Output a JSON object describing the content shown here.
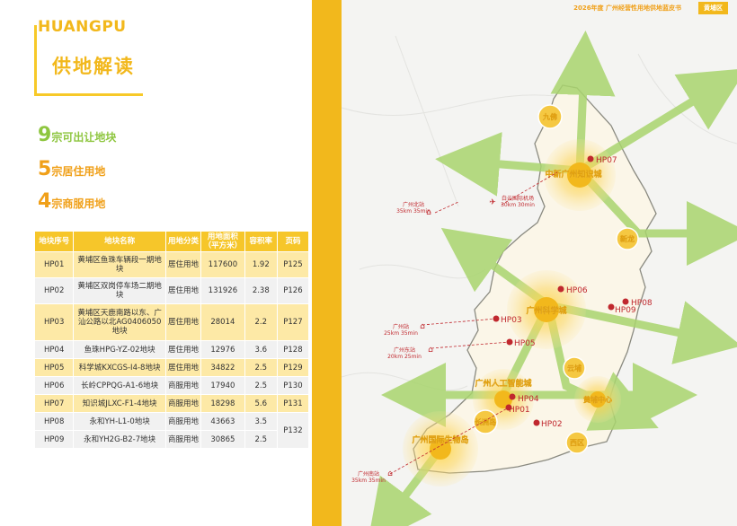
{
  "header": {
    "doc_title": "2026年度 广州经营性用地供地蓝皮书",
    "district_tag": "黄埔区"
  },
  "brand": {
    "district_en": "HUANGPU",
    "section_title": "供地解读"
  },
  "stats": [
    {
      "num": "9",
      "text": "宗可出让地块"
    },
    {
      "num": "5",
      "text": "宗居住用地"
    },
    {
      "num": "4",
      "text": "宗商服用地"
    }
  ],
  "table": {
    "headers": [
      "地块序号",
      "地块名称",
      "用地分类",
      "用地面积（平方米）",
      "容积率",
      "页码"
    ],
    "rows": [
      {
        "id": "HP01",
        "name": "黄埔区鱼珠车辆段一期地块",
        "type": "居住用地",
        "area": "117600",
        "far": "1.92",
        "page": "P125"
      },
      {
        "id": "HP02",
        "name": "黄埔区双岗停车场二期地块",
        "type": "居住用地",
        "area": "131926",
        "far": "2.38",
        "page": "P126"
      },
      {
        "id": "HP03",
        "name": "黄埔区天鹿南路以东、广汕公路以北AG0406050地块",
        "type": "居住用地",
        "area": "28014",
        "far": "2.2",
        "page": "P127"
      },
      {
        "id": "HP04",
        "name": "鱼珠HPG-YZ-02地块",
        "type": "居住用地",
        "area": "12976",
        "far": "3.6",
        "page": "P128"
      },
      {
        "id": "HP05",
        "name": "科学城KXCGS-I4-8地块",
        "type": "居住用地",
        "area": "34822",
        "far": "2.5",
        "page": "P129"
      },
      {
        "id": "HP06",
        "name": "长岭CPPQG-A1-6地块",
        "type": "商服用地",
        "area": "17940",
        "far": "2.5",
        "page": "P130"
      },
      {
        "id": "HP07",
        "name": "知识城JLXC-F1-4地块",
        "type": "商服用地",
        "area": "18298",
        "far": "5.6",
        "page": "P131"
      },
      {
        "id": "HP08",
        "name": "永和YH-L1-0地块",
        "type": "商服用地",
        "area": "43663",
        "far": "3.5",
        "page": "P132"
      },
      {
        "id": "HP09",
        "name": "永和YH2G-B2-7地块",
        "type": "商服用地",
        "area": "30865",
        "far": "2.5",
        "page": ""
      }
    ]
  },
  "map": {
    "hubs": [
      "中新广州知识城",
      "广州科学城",
      "广州人工智能城",
      "广州国际生物岛",
      "长洲岛",
      "黄埔中心",
      "云埔",
      "西区",
      "新龙",
      "九佛"
    ],
    "plots": [
      "HP07",
      "HP06",
      "HP08",
      "HP09",
      "HP03",
      "HP05",
      "HP04",
      "HP01",
      "HP02"
    ],
    "transit": [
      {
        "name": "白云国际机场",
        "time": "30km 30min"
      },
      {
        "name": "广州北站",
        "time": "35km 35min"
      },
      {
        "name": "广州站",
        "time": "25km 35min"
      },
      {
        "name": "广州东站",
        "time": "20km 25min"
      },
      {
        "name": "广州南站",
        "time": "35km 35min"
      }
    ],
    "colors": {
      "accent": "#f2b81c",
      "green": "#9ccf5e",
      "plot_red": "#c0282e"
    }
  }
}
